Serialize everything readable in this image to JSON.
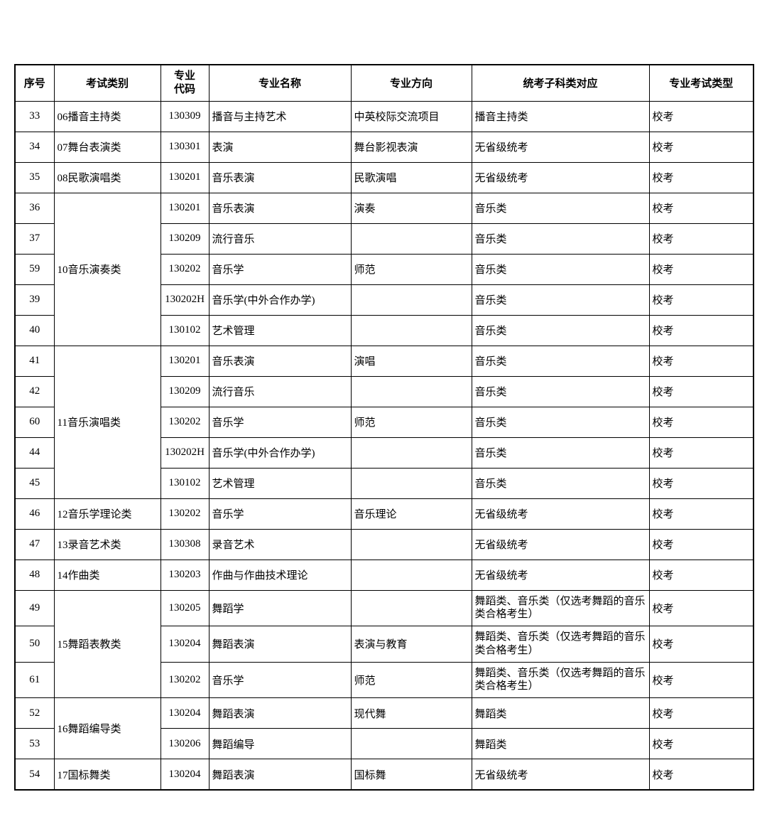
{
  "headers": [
    "序号",
    "考试类别",
    "专业\n代码",
    "专业名称",
    "专业方向",
    "统考子科类对应",
    "专业考试类型"
  ],
  "rows": [
    {
      "seq": "33",
      "cat": "06播音主持类",
      "catspan": 1,
      "code": "130309",
      "name": "播音与主持艺术",
      "dir": "中英校际交流项目",
      "sub": "播音主持类",
      "type": "校考"
    },
    {
      "seq": "34",
      "cat": "07舞台表演类",
      "catspan": 1,
      "code": "130301",
      "name": "表演",
      "dir": "舞台影视表演",
      "sub": "无省级统考",
      "type": "校考"
    },
    {
      "seq": "35",
      "cat": "08民歌演唱类",
      "catspan": 1,
      "code": "130201",
      "name": "音乐表演",
      "dir": "民歌演唱",
      "sub": "无省级统考",
      "type": "校考"
    },
    {
      "seq": "36",
      "cat": "10音乐演奏类",
      "catspan": 5,
      "code": "130201",
      "name": "音乐表演",
      "dir": "演奏",
      "sub": "音乐类",
      "type": "校考"
    },
    {
      "seq": "37",
      "code": "130209",
      "name": "流行音乐",
      "dir": "",
      "sub": "音乐类",
      "type": "校考"
    },
    {
      "seq": "59",
      "code": "130202",
      "name": "音乐学",
      "dir": "师范",
      "sub": "音乐类",
      "type": "校考"
    },
    {
      "seq": "39",
      "code": "130202H",
      "name": "音乐学(中外合作办学)",
      "dir": "",
      "sub": "音乐类",
      "type": "校考"
    },
    {
      "seq": "40",
      "code": "130102",
      "name": "艺术管理",
      "dir": "",
      "sub": "音乐类",
      "type": "校考"
    },
    {
      "seq": "41",
      "cat": "11音乐演唱类",
      "catspan": 5,
      "code": "130201",
      "name": "音乐表演",
      "dir": "演唱",
      "sub": "音乐类",
      "type": "校考"
    },
    {
      "seq": "42",
      "code": "130209",
      "name": "流行音乐",
      "dir": "",
      "sub": "音乐类",
      "type": "校考"
    },
    {
      "seq": "60",
      "code": "130202",
      "name": "音乐学",
      "dir": "师范",
      "sub": "音乐类",
      "type": "校考"
    },
    {
      "seq": "44",
      "code": "130202H",
      "name": "音乐学(中外合作办学)",
      "dir": "",
      "sub": "音乐类",
      "type": "校考"
    },
    {
      "seq": "45",
      "code": "130102",
      "name": "艺术管理",
      "dir": "",
      "sub": "音乐类",
      "type": "校考"
    },
    {
      "seq": "46",
      "cat": "12音乐学理论类",
      "catspan": 1,
      "code": "130202",
      "name": "音乐学",
      "dir": "音乐理论",
      "sub": "无省级统考",
      "type": "校考"
    },
    {
      "seq": "47",
      "cat": "13录音艺术类",
      "catspan": 1,
      "code": "130308",
      "name": "录音艺术",
      "dir": "",
      "sub": "无省级统考",
      "type": "校考"
    },
    {
      "seq": "48",
      "cat": "14作曲类",
      "catspan": 1,
      "code": "130203",
      "name": "作曲与作曲技术理论",
      "dir": "",
      "sub": "无省级统考",
      "type": "校考"
    },
    {
      "seq": "49",
      "cat": "15舞蹈表教类",
      "catspan": 3,
      "code": "130205",
      "name": "舞蹈学",
      "dir": "",
      "sub": "舞蹈类、音乐类（仅选考舞蹈的音乐类合格考生）",
      "type": "校考",
      "subTwoLine": true
    },
    {
      "seq": "50",
      "code": "130204",
      "name": "舞蹈表演",
      "dir": "表演与教育",
      "sub": "舞蹈类、音乐类（仅选考舞蹈的音乐类合格考生）",
      "type": "校考",
      "subTwoLine": true
    },
    {
      "seq": "61",
      "code": "130202",
      "name": "音乐学",
      "dir": "师范",
      "sub": "舞蹈类、音乐类（仅选考舞蹈的音乐类合格考生）",
      "type": "校考",
      "subTwoLine": true
    },
    {
      "seq": "52",
      "cat": "16舞蹈编导类",
      "catspan": 2,
      "code": "130204",
      "name": "舞蹈表演",
      "dir": "现代舞",
      "sub": "舞蹈类",
      "type": "校考"
    },
    {
      "seq": "53",
      "code": "130206",
      "name": "舞蹈编导",
      "dir": "",
      "sub": "舞蹈类",
      "type": "校考"
    },
    {
      "seq": "54",
      "cat": "17国标舞类",
      "catspan": 1,
      "code": "130204",
      "name": "舞蹈表演",
      "dir": "国标舞",
      "sub": "无省级统考",
      "type": "校考"
    }
  ]
}
